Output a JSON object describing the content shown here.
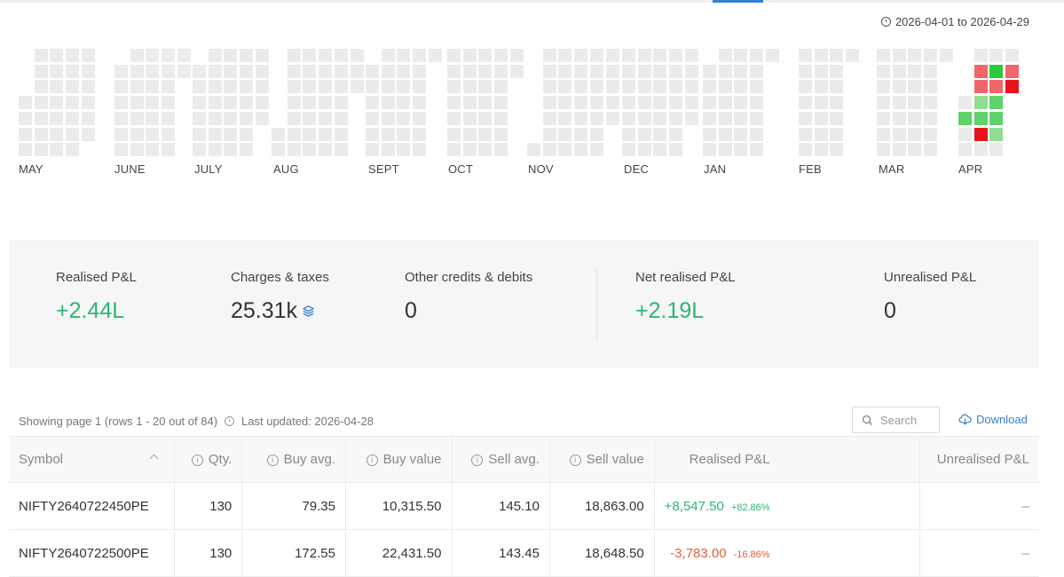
{
  "date_range": "2026-04-01 to 2026-04-29",
  "heatmap": {
    "colors": {
      "empty": "#ebebeb",
      "loss_dark": "#e8141c",
      "loss": "#f0676b",
      "profit_dark": "#2ec93a",
      "profit": "#5ed36a",
      "profit_light": "#8fdd92"
    },
    "months": [
      "MAY",
      "JUNE",
      "JULY",
      "AUG",
      "SEPT",
      "OCT",
      "NOV",
      "DEC",
      "JAN",
      "FEB",
      "MAR",
      "APR"
    ]
  },
  "summary": {
    "realised_label": "Realised P&L",
    "realised_value": "+2.44L",
    "charges_label": "Charges & taxes",
    "charges_value": "25.31k",
    "other_label": "Other credits & debits",
    "other_value": "0",
    "net_label": "Net realised P&L",
    "net_value": "+2.19L",
    "unrealised_label": "Unrealised P&L",
    "unrealised_value": "0"
  },
  "table_meta": {
    "showing": "Showing page 1 (rows 1 - 20 out of 84)",
    "last_updated": "Last updated: 2026-04-28",
    "search_placeholder": "Search",
    "download_label": "Download"
  },
  "columns": {
    "symbol": "Symbol",
    "qty": "Qty.",
    "buy_avg": "Buy avg.",
    "buy_value": "Buy value",
    "sell_avg": "Sell avg.",
    "sell_value": "Sell value",
    "realised": "Realised P&L",
    "unrealised": "Unrealised P&L"
  },
  "rows": [
    {
      "symbol": "NIFTY2640722450PE",
      "qty": "130",
      "buy_avg": "79.35",
      "buy_value": "10,315.50",
      "sell_avg": "145.10",
      "sell_value": "18,863.00",
      "realised": "+8,547.50",
      "realised_pct": "+82.86%",
      "unrealised": "–"
    },
    {
      "symbol": "NIFTY2640722500PE",
      "qty": "130",
      "buy_avg": "172.55",
      "buy_value": "22,431.50",
      "sell_avg": "143.45",
      "sell_value": "18,648.50",
      "realised": "-3,783.00",
      "realised_pct": "-16.86%",
      "unrealised": "–"
    }
  ]
}
